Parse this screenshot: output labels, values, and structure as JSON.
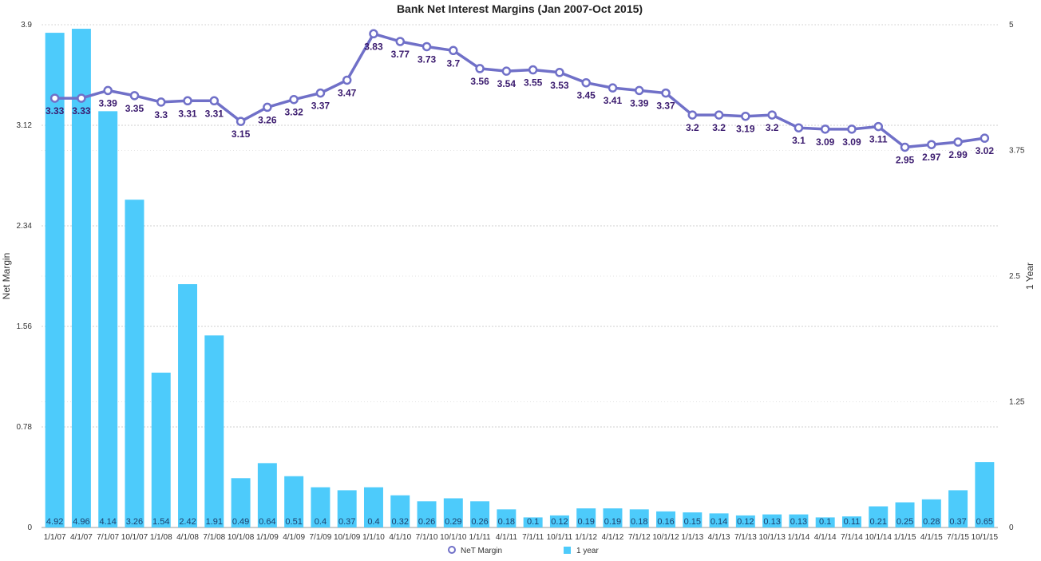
{
  "chart_data": {
    "type": "bar",
    "title": "Bank Net Interest Margins  (Jan 2007-Oct 2015)",
    "xlabel": "",
    "ylabel": "Net Margin",
    "y2label": "1 Year",
    "ylim": [
      0,
      3.9
    ],
    "y2lim": [
      0,
      5
    ],
    "yticks": [
      "0",
      "0.78",
      "1.56",
      "2.34",
      "3.12",
      "3.9"
    ],
    "y2ticks": [
      "0",
      "1.25",
      "2.5",
      "3.75",
      "5"
    ],
    "grid": true,
    "legend_position": "bottom",
    "categories": [
      "1/1/07",
      "4/1/07",
      "7/1/07",
      "10/1/07",
      "1/1/08",
      "4/1/08",
      "7/1/08",
      "10/1/08",
      "1/1/09",
      "4/1/09",
      "7/1/09",
      "10/1/09",
      "1/1/10",
      "4/1/10",
      "7/1/10",
      "10/1/10",
      "1/1/11",
      "4/1/11",
      "7/1/11",
      "10/1/11",
      "1/1/12",
      "4/1/12",
      "7/1/12",
      "10/1/12",
      "1/1/13",
      "4/1/13",
      "7/1/13",
      "10/1/13",
      "1/1/14",
      "4/1/14",
      "7/1/14",
      "10/1/14",
      "1/1/15",
      "4/1/15",
      "7/1/15",
      "10/1/15"
    ],
    "series": [
      {
        "name": "NeT Margin",
        "type": "line",
        "axis": "left",
        "color": "#7070c8",
        "label_color": "#3a1a6e",
        "values": [
          3.33,
          3.33,
          3.39,
          3.35,
          3.3,
          3.31,
          3.31,
          3.15,
          3.26,
          3.32,
          3.37,
          3.47,
          3.83,
          3.77,
          3.73,
          3.7,
          3.56,
          3.54,
          3.55,
          3.53,
          3.45,
          3.41,
          3.39,
          3.37,
          3.2,
          3.2,
          3.19,
          3.2,
          3.1,
          3.09,
          3.09,
          3.11,
          2.95,
          2.97,
          2.99,
          3.02
        ]
      },
      {
        "name": "1 year",
        "type": "bar",
        "axis": "right",
        "color": "#4dcbfb",
        "label_color": "#1b3f6b",
        "values": [
          4.92,
          4.96,
          4.14,
          3.26,
          1.54,
          2.42,
          1.91,
          0.49,
          0.64,
          0.51,
          0.4,
          0.37,
          0.4,
          0.32,
          0.26,
          0.29,
          0.26,
          0.18,
          0.1,
          0.12,
          0.19,
          0.19,
          0.18,
          0.16,
          0.15,
          0.14,
          0.12,
          0.13,
          0.13,
          0.1,
          0.11,
          0.21,
          0.25,
          0.28,
          0.37,
          0.65
        ]
      }
    ]
  }
}
